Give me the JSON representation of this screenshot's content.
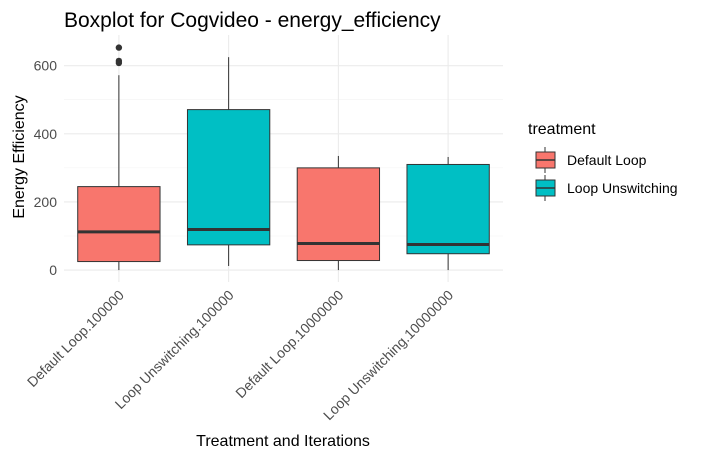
{
  "chart_data": {
    "type": "boxplot",
    "title": "Boxplot for Cogvideo - energy_efficiency",
    "xlabel": "Treatment and Iterations",
    "ylabel": "Energy Efficiency",
    "ylim": [
      -35,
      690
    ],
    "yticks": [
      0,
      200,
      400,
      600
    ],
    "ytick_labels": [
      "0",
      "200",
      "400",
      "600"
    ],
    "grid": true,
    "legend": {
      "title": "treatment",
      "placement": "right",
      "entries": [
        {
          "label": "Default Loop",
          "color": "#F8766D"
        },
        {
          "label": "Loop Unswitching",
          "color": "#00BFC4"
        }
      ]
    },
    "categories": [
      "Default Loop.100000",
      "Loop Unswitching.100000",
      "Default Loop.10000000",
      "Loop Unswitching.10000000"
    ],
    "boxes": [
      {
        "category": "Default Loop.100000",
        "treatment": "Default Loop",
        "min": 0,
        "q1": 25,
        "median": 112,
        "q3": 245,
        "max": 572,
        "outliers": [
          653,
          614,
          608
        ]
      },
      {
        "category": "Loop Unswitching.100000",
        "treatment": "Loop Unswitching",
        "min": 12,
        "q1": 74,
        "median": 119,
        "q3": 471,
        "max": 625,
        "outliers": []
      },
      {
        "category": "Default Loop.10000000",
        "treatment": "Default Loop",
        "min": 0,
        "q1": 28,
        "median": 78,
        "q3": 300,
        "max": 335,
        "outliers": []
      },
      {
        "category": "Loop Unswitching.10000000",
        "treatment": "Loop Unswitching",
        "min": 0,
        "q1": 48,
        "median": 75,
        "q3": 310,
        "max": 332,
        "outliers": []
      }
    ]
  }
}
